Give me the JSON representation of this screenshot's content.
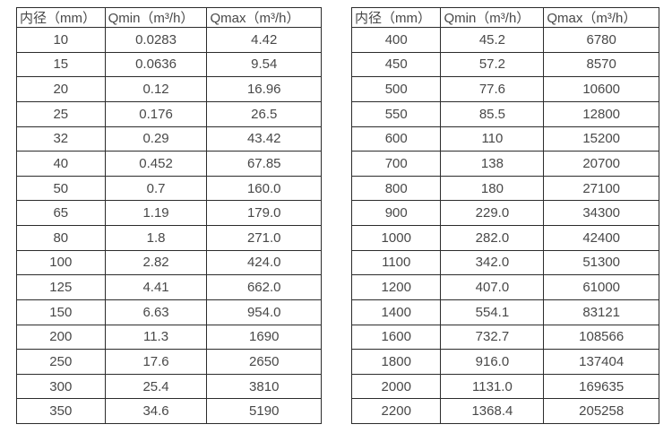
{
  "colors": {
    "background": "#ffffff",
    "border": "#2c2c2c",
    "text": "#484848"
  },
  "tables": [
    {
      "name": "flow-spec-table-small-diameters",
      "headers": [
        "内径（mm）",
        "Qmin（m³/h）",
        "Qmax（m³/h）"
      ],
      "rows": [
        [
          "10",
          "0.0283",
          "4.42"
        ],
        [
          "15",
          "0.0636",
          "9.54"
        ],
        [
          "20",
          "0.12",
          "16.96"
        ],
        [
          "25",
          "0.176",
          "26.5"
        ],
        [
          "32",
          "0.29",
          "43.42"
        ],
        [
          "40",
          "0.452",
          "67.85"
        ],
        [
          "50",
          "0.7",
          "160.0"
        ],
        [
          "65",
          "1.19",
          "179.0"
        ],
        [
          "80",
          "1.8",
          "271.0"
        ],
        [
          "100",
          "2.82",
          "424.0"
        ],
        [
          "125",
          "4.41",
          "662.0"
        ],
        [
          "150",
          "6.63",
          "954.0"
        ],
        [
          "200",
          "11.3",
          "1690"
        ],
        [
          "250",
          "17.6",
          "2650"
        ],
        [
          "300",
          "25.4",
          "3810"
        ],
        [
          "350",
          "34.6",
          "5190"
        ]
      ]
    },
    {
      "name": "flow-spec-table-large-diameters",
      "headers": [
        "内径（mm）",
        "Qmin（m³/h）",
        "Qmax（m³/h）"
      ],
      "rows": [
        [
          "400",
          "45.2",
          "6780"
        ],
        [
          "450",
          "57.2",
          "8570"
        ],
        [
          "500",
          "77.6",
          "10600"
        ],
        [
          "550",
          "85.5",
          "12800"
        ],
        [
          "600",
          "110",
          "15200"
        ],
        [
          "700",
          "138",
          "20700"
        ],
        [
          "800",
          "180",
          "27100"
        ],
        [
          "900",
          "229.0",
          "34300"
        ],
        [
          "1000",
          "282.0",
          "42400"
        ],
        [
          "1100",
          "342.0",
          "51300"
        ],
        [
          "1200",
          "407.0",
          "61000"
        ],
        [
          "1400",
          "554.1",
          "83121"
        ],
        [
          "1600",
          "732.7",
          "108566"
        ],
        [
          "1800",
          "916.0",
          "137404"
        ],
        [
          "2000",
          "1131.0",
          "169635"
        ],
        [
          "2200",
          "1368.4",
          "205258"
        ]
      ]
    }
  ]
}
